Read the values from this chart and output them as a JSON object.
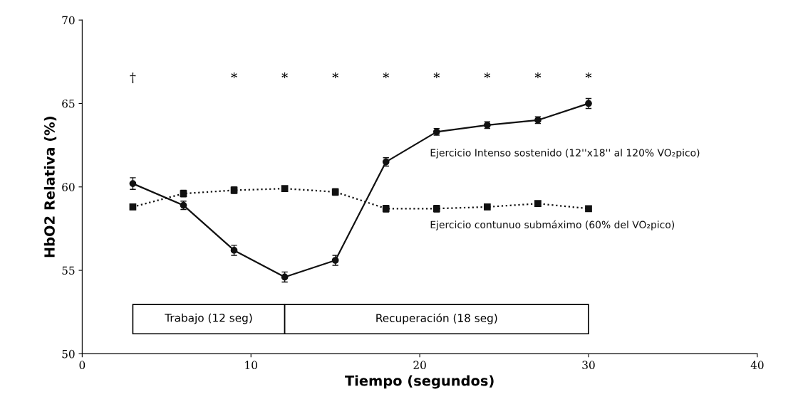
{
  "chart_data": {
    "type": "line",
    "xlabel": "Tiempo (segundos)",
    "ylabel": "HbO2 Relativa (%)",
    "x": [
      3,
      6,
      9,
      12,
      15,
      18,
      21,
      24,
      27,
      30
    ],
    "series": [
      {
        "name": "Ejercicio Intenso sostenido (12''x18'' al 120% VO₂pico)",
        "color": "#111111",
        "marker": "circle",
        "line_style": "solid",
        "values": [
          60.2,
          58.9,
          56.2,
          54.6,
          55.6,
          61.5,
          63.3,
          63.7,
          64.0,
          65.0
        ],
        "errors": [
          0.35,
          0.25,
          0.3,
          0.3,
          0.3,
          0.25,
          0.2,
          0.2,
          0.2,
          0.3
        ]
      },
      {
        "name": "Ejercicio contunuo submáximo (60% del VO₂pico)",
        "color": "#111111",
        "marker": "square",
        "line_style": "dotted",
        "values": [
          58.8,
          59.6,
          59.8,
          59.9,
          59.7,
          58.7,
          58.7,
          58.8,
          59.0,
          58.7
        ],
        "errors": [
          0.15,
          0.2,
          0.2,
          0.15,
          0.2,
          0.2,
          0.2,
          0.15,
          0.15,
          0.15
        ]
      }
    ],
    "xlim": [
      0,
      40
    ],
    "xticks": [
      0,
      10,
      20,
      30,
      40
    ],
    "ylim": [
      50,
      70
    ],
    "yticks": [
      50,
      55,
      60,
      65,
      70
    ],
    "grid": false,
    "legend": false,
    "annotations": [
      "†",
      "*",
      "*",
      "*",
      "*",
      "*",
      "*",
      "*",
      "*",
      "Trabajo (12 seg)",
      "Recuperación (18 seg)"
    ]
  }
}
